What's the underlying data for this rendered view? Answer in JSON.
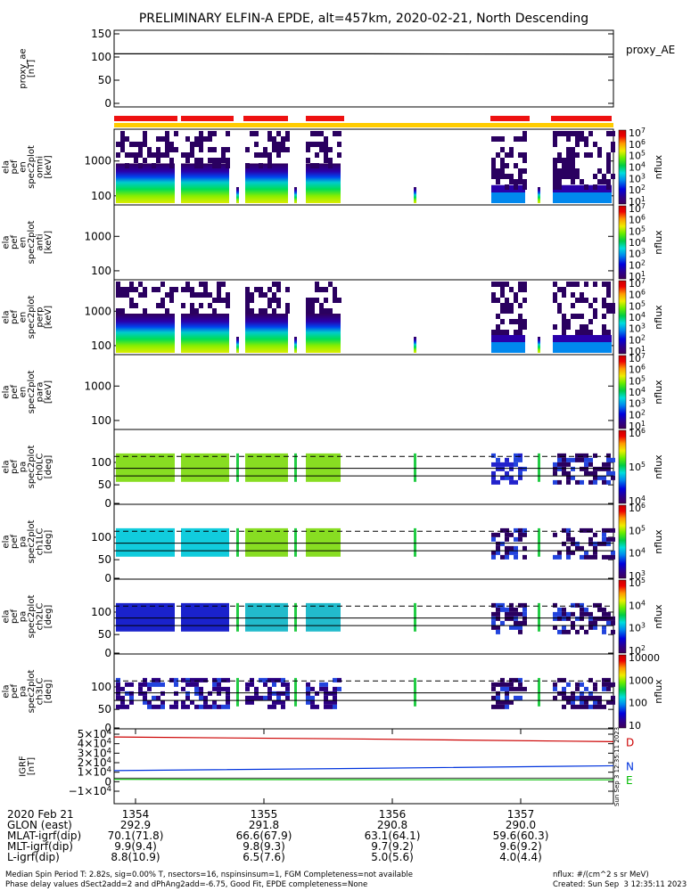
{
  "title": "PRELIMINARY ELFIN-A EPDE, alt=457km, 2020-02-21, North Descending",
  "colors": {
    "red_bar": "#ee1111",
    "yellow_bar": "#ffcc00",
    "ae_line": "#000000",
    "bD": "#cc0000",
    "bN": "#0033dd",
    "bE": "#00bb00"
  },
  "chart_data": [
    {
      "type": "line",
      "panel": "proxy_ae",
      "ylabel": "proxy_ae [nT]",
      "ylim": [
        0,
        150
      ],
      "yticks": [
        "150",
        "100",
        "50",
        "0"
      ],
      "series": [
        {
          "name": "proxy_AE",
          "x": [
            0,
            0.5,
            1.0
          ],
          "values": [
            107,
            107,
            106
          ]
        }
      ]
    },
    {
      "type": "heatmap",
      "panel": "pef_en_spec2plot_omni",
      "ylabel": "ela pef en spec2plot omni [keV]",
      "yticks": [
        "1000",
        "100"
      ],
      "colorbar_ticks": [
        "10^7",
        "10^6",
        "10^5",
        "10^4",
        "10^3",
        "10^2",
        "10^1"
      ],
      "colorbar_label": "nflux"
    },
    {
      "type": "heatmap",
      "panel": "pef_en_spec2plot_anti",
      "ylabel": "ela pef en spec2plot anti [keV]",
      "yticks": [
        "1000",
        "100"
      ],
      "colorbar_ticks": [
        "10^7",
        "10^6",
        "10^5",
        "10^4",
        "10^3",
        "10^2",
        "10^1"
      ],
      "colorbar_label": "nflux"
    },
    {
      "type": "heatmap",
      "panel": "pef_en_spec2plot_perp",
      "ylabel": "ela pef en spec2plot perp [keV]",
      "yticks": [
        "1000",
        "100"
      ],
      "colorbar_ticks": [
        "10^7",
        "10^6",
        "10^5",
        "10^4",
        "10^3",
        "10^2",
        "10^1"
      ],
      "colorbar_label": "nflux"
    },
    {
      "type": "heatmap",
      "panel": "pef_en_spec2plot_para",
      "ylabel": "ela pef en spec2plot para [keV]",
      "yticks": [
        "1000",
        "100"
      ],
      "colorbar_ticks": [
        "10^7",
        "10^6",
        "10^5",
        "10^4",
        "10^3",
        "10^2",
        "10^1"
      ],
      "colorbar_label": "nflux"
    },
    {
      "type": "heatmap",
      "panel": "pef_pa_spec2plot_ch0LC",
      "ylabel": "ela pef pa spec2plot ch0LC [deg]",
      "yticks": [
        "100",
        "50",
        "0"
      ],
      "colorbar_ticks": [
        "10^6",
        "10^5",
        "10^4"
      ],
      "colorbar_label": "nflux"
    },
    {
      "type": "heatmap",
      "panel": "pef_pa_spec2plot_ch1LC",
      "ylabel": "ela pef pa spec2plot ch1LC [deg]",
      "yticks": [
        "100",
        "50",
        "0"
      ],
      "colorbar_ticks": [
        "10^6",
        "10^5",
        "10^4",
        "10^3"
      ],
      "colorbar_label": "nflux"
    },
    {
      "type": "heatmap",
      "panel": "pef_pa_spec2plot_ch2LC",
      "ylabel": "ela pef pa spec2plot ch2LC [deg]",
      "yticks": [
        "100",
        "50",
        "0"
      ],
      "colorbar_ticks": [
        "10^5",
        "10^4",
        "10^3",
        "10^2"
      ],
      "colorbar_label": "nflux"
    },
    {
      "type": "heatmap",
      "panel": "pef_pa_spec2plot_ch3LC",
      "ylabel": "ela pef pa spec2plot ch3LC [deg]",
      "yticks": [
        "100",
        "50",
        "0"
      ],
      "colorbar_ticks": [
        "10000",
        "1000",
        "100",
        "10"
      ],
      "colorbar_label": "nflux"
    },
    {
      "type": "line",
      "panel": "igrf",
      "ylabel": "IGRF [nT]",
      "ylim": [
        -15000,
        50000
      ],
      "yticks": [
        "5×10^4",
        "4×10^4",
        "3×10^4",
        "2×10^4",
        "1×10^4",
        "0",
        "−1×10^4"
      ],
      "series": [
        {
          "name": "D",
          "x": [
            0,
            0.5,
            1.0
          ],
          "values": [
            46800,
            44500,
            41500
          ]
        },
        {
          "name": "N",
          "x": [
            0,
            0.5,
            1.0
          ],
          "values": [
            8500,
            11000,
            14000
          ]
        },
        {
          "name": "E",
          "x": [
            0,
            0.5,
            1.0
          ],
          "values": [
            -1500,
            -1800,
            -2000
          ]
        }
      ]
    }
  ],
  "timestamp_vertical": "Sun Sep  3 12:35:11 2023",
  "xaxis": {
    "rows": [
      {
        "label": "2020 Feb 21",
        "values": [
          "1354",
          "1355",
          "1356",
          "1357"
        ]
      },
      {
        "label": "GLON (east)",
        "values": [
          "292.9",
          "291.8",
          "290.8",
          "290.0"
        ]
      },
      {
        "label": "MLAT-igrf(dip)",
        "values": [
          "70.1(71.8)",
          "66.6(67.9)",
          "63.1(64.1)",
          "59.6(60.3)"
        ]
      },
      {
        "label": "MLT-igrf(dip)",
        "values": [
          "9.9(9.4)",
          "9.8(9.3)",
          "9.7(9.2)",
          "9.6(9.2)"
        ]
      },
      {
        "label": "L-igrf(dip)",
        "values": [
          "8.8(10.9)",
          "6.5(7.6)",
          "5.0(5.6)",
          "4.0(4.4)"
        ]
      }
    ]
  },
  "footer": {
    "line1": "Median Spin Period T: 2.82s, sig=0.00% T, nsectors=16, nspinsinsum=1, FGM Completeness=not available",
    "line2": "Phase delay values dSect2add=2 and dPhAng2add=-6.75, Good Fit, EPDE completeness=None",
    "right1": "nflux: #/(cm^2 s sr MeV)",
    "right2": "Created: Sun Sep  3 12:35:11 2023"
  }
}
